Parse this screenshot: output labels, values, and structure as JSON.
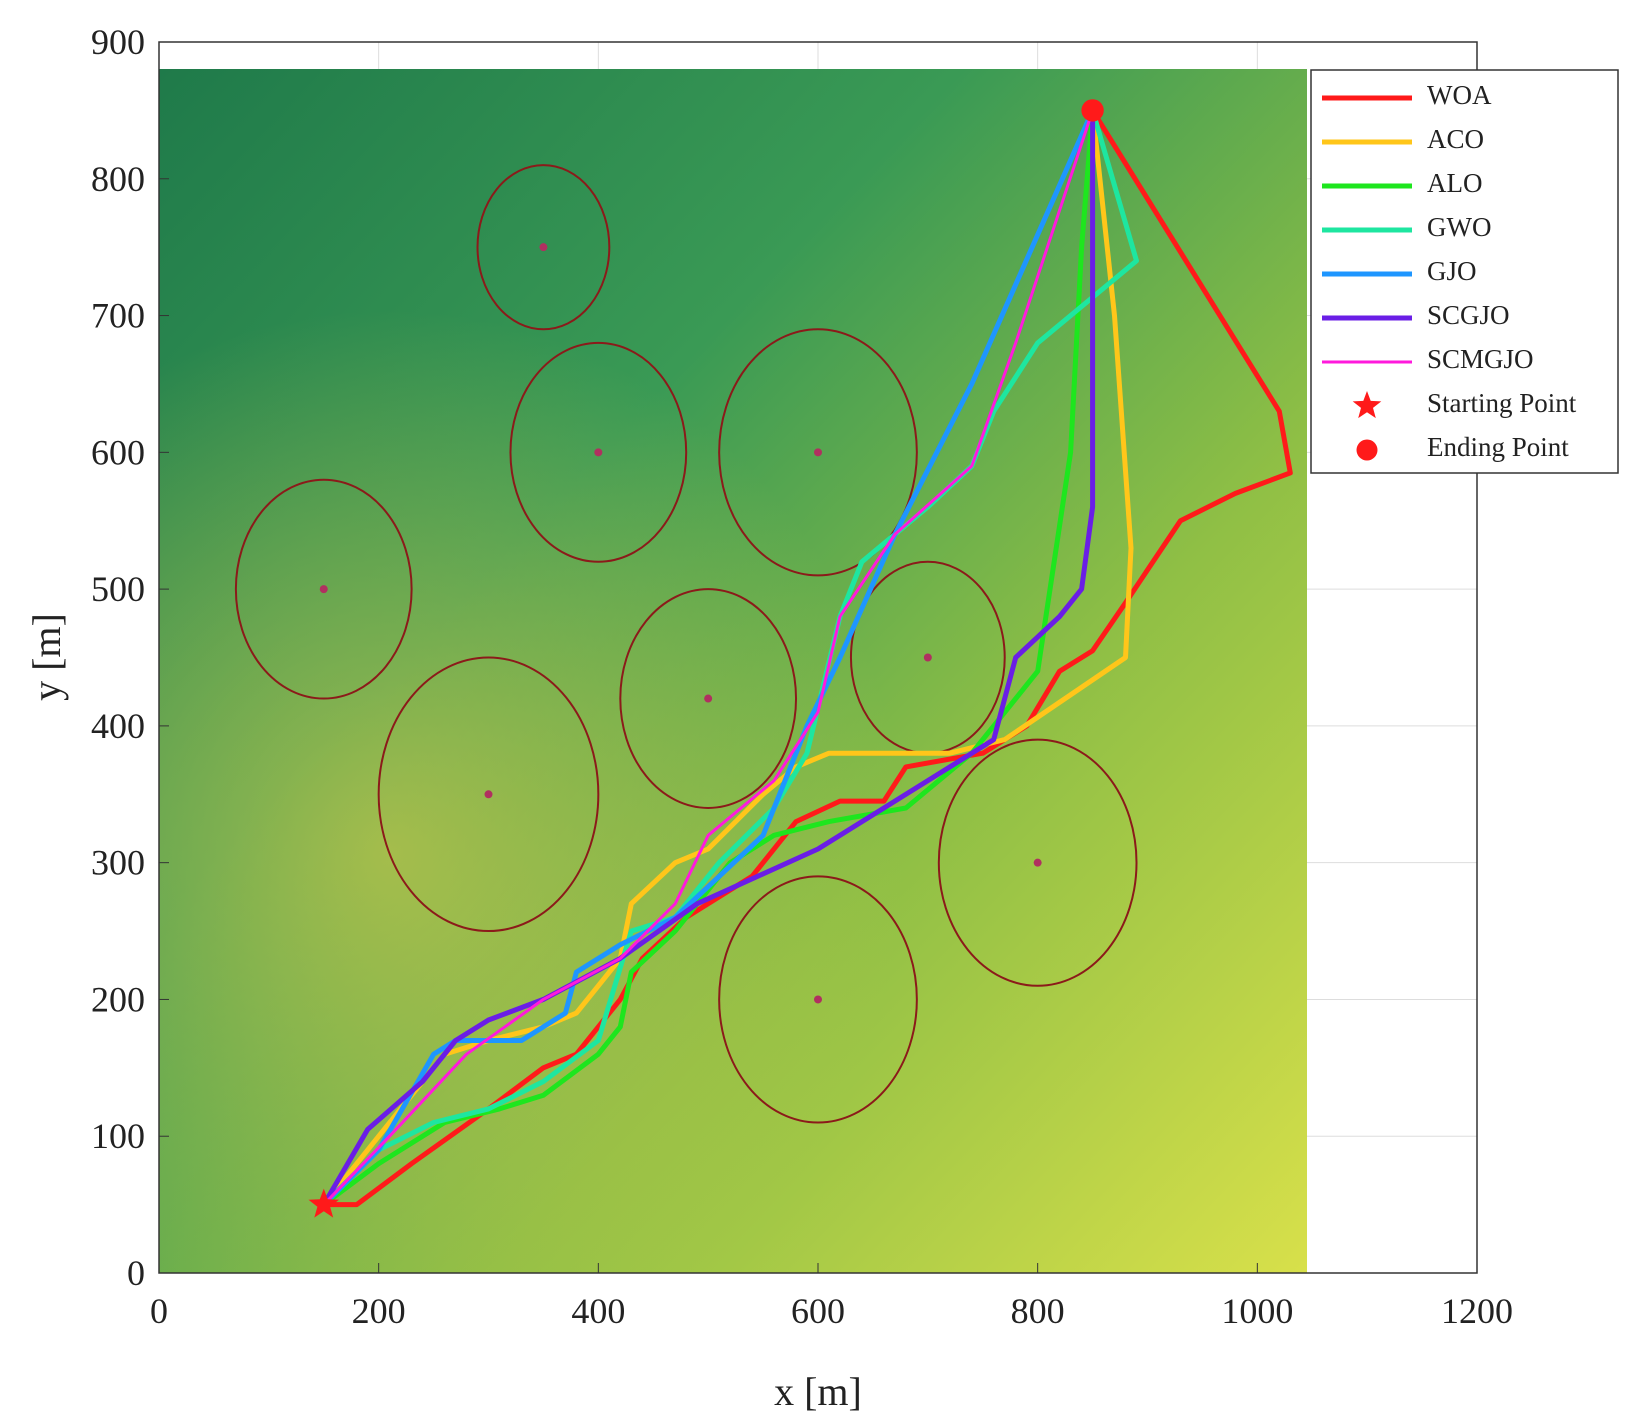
{
  "chart_data": {
    "type": "line",
    "x_label": "x [m]",
    "y_label": "y [m]",
    "xlim": [
      0,
      1200
    ],
    "ylim": [
      0,
      900
    ],
    "xticks": [
      0,
      200,
      400,
      600,
      800,
      1000,
      1200
    ],
    "yticks": [
      0,
      100,
      200,
      300,
      400,
      500,
      600,
      700,
      800,
      900
    ],
    "grid": true,
    "legend": "upper right",
    "obstacles": [
      {
        "x": 350,
        "y": 750,
        "r": 60
      },
      {
        "x": 400,
        "y": 600,
        "r": 80
      },
      {
        "x": 600,
        "y": 600,
        "r": 90
      },
      {
        "x": 150,
        "y": 500,
        "r": 80
      },
      {
        "x": 300,
        "y": 350,
        "r": 100
      },
      {
        "x": 500,
        "y": 420,
        "r": 80
      },
      {
        "x": 700,
        "y": 450,
        "r": 70
      },
      {
        "x": 800,
        "y": 300,
        "r": 90
      },
      {
        "x": 600,
        "y": 200,
        "r": 90
      }
    ],
    "obstacle_color": "#8b1a1a",
    "series": [
      {
        "name": "WOA",
        "color": "#ff1a1a",
        "width": 5,
        "x": [
          150,
          180,
          230,
          300,
          350,
          380,
          420,
          440,
          480,
          540,
          580,
          620,
          660,
          680,
          750,
          790,
          820,
          850,
          880,
          930,
          980,
          1030,
          1020,
          850
        ],
        "values": [
          50,
          50,
          80,
          120,
          150,
          160,
          200,
          230,
          260,
          290,
          330,
          345,
          345,
          370,
          380,
          400,
          440,
          455,
          490,
          550,
          570,
          585,
          630,
          850
        ]
      },
      {
        "name": "ACO",
        "color": "#ffc61a",
        "width": 5,
        "x": [
          150,
          190,
          230,
          260,
          300,
          350,
          380,
          420,
          430,
          470,
          500,
          550,
          580,
          610,
          660,
          720,
          770,
          880,
          885,
          870,
          850
        ],
        "values": [
          50,
          90,
          130,
          160,
          170,
          180,
          190,
          230,
          270,
          300,
          310,
          350,
          370,
          380,
          380,
          380,
          390,
          450,
          530,
          700,
          850
        ]
      },
      {
        "name": "ALO",
        "color": "#1ee61e",
        "width": 5,
        "x": [
          150,
          200,
          260,
          310,
          350,
          400,
          420,
          430,
          470,
          520,
          560,
          610,
          680,
          740,
          800,
          830,
          840,
          850
        ],
        "values": [
          50,
          80,
          110,
          120,
          130,
          160,
          180,
          220,
          250,
          300,
          320,
          330,
          340,
          380,
          440,
          600,
          750,
          850
        ]
      },
      {
        "name": "GWO",
        "color": "#1ee6a0",
        "width": 5,
        "x": [
          150,
          200,
          250,
          300,
          350,
          400,
          430,
          470,
          510,
          560,
          590,
          620,
          640,
          700,
          740,
          760,
          800,
          890,
          850
        ],
        "values": [
          50,
          90,
          110,
          120,
          140,
          170,
          250,
          260,
          300,
          340,
          380,
          480,
          520,
          560,
          590,
          630,
          680,
          740,
          850
        ]
      },
      {
        "name": "GJO",
        "color": "#1e96ff",
        "width": 5,
        "x": [
          150,
          200,
          250,
          270,
          330,
          370,
          380,
          420,
          470,
          550,
          590,
          620,
          670,
          740,
          850
        ],
        "values": [
          50,
          90,
          160,
          170,
          170,
          190,
          220,
          240,
          260,
          320,
          400,
          450,
          540,
          650,
          850
        ]
      },
      {
        "name": "SCGJO",
        "color": "#6a1ee6",
        "width": 5,
        "x": [
          150,
          190,
          240,
          270,
          300,
          350,
          420,
          490,
          600,
          660,
          760,
          780,
          820,
          840,
          850,
          850
        ],
        "values": [
          50,
          105,
          140,
          170,
          185,
          200,
          230,
          270,
          310,
          340,
          390,
          450,
          480,
          500,
          560,
          850
        ]
      },
      {
        "name": "SCMGJO",
        "color": "#ff1adc",
        "width": 3,
        "x": [
          150,
          210,
          280,
          350,
          420,
          470,
          500,
          560,
          600,
          620,
          670,
          740,
          780,
          850
        ],
        "values": [
          50,
          100,
          160,
          200,
          230,
          270,
          320,
          360,
          410,
          480,
          540,
          590,
          680,
          850
        ]
      }
    ],
    "markers": [
      {
        "name": "Starting Point",
        "shape": "star",
        "color": "#ff1a1a",
        "x": 150,
        "y": 50
      },
      {
        "name": "Ending Point",
        "shape": "circle",
        "color": "#ff1a1a",
        "x": 850,
        "y": 850
      }
    ]
  }
}
